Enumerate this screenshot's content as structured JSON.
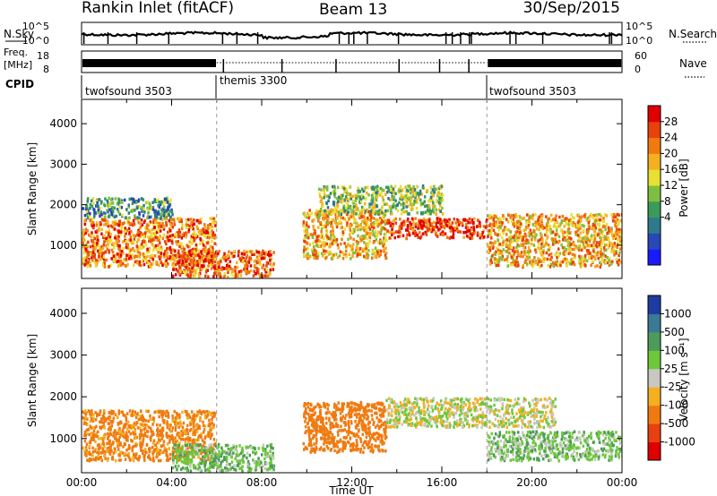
{
  "header": {
    "site": "Rankin Inlet (fitACF)",
    "beam": "Beam 13",
    "date": "30/Sep/2015"
  },
  "summary": {
    "nsky_label": "N.Sky",
    "nsearch_label": "N.Search",
    "freq_label_1": "Freq.",
    "freq_label_2": "[MHz]",
    "nave_label": "Nave",
    "cpid_label": "CPID",
    "noise_left_ticks": [
      "10^5",
      "10^0"
    ],
    "noise_right_ticks": [
      "10^5",
      "10^0"
    ],
    "freq_ticks": [
      "18",
      "8"
    ],
    "nave_ticks": [
      "60",
      "0"
    ],
    "cpid_segments": [
      {
        "label": "twofsound 3503",
        "start_hour": 0
      },
      {
        "label": "themis 3300",
        "start_hour": 6
      },
      {
        "label": "twofsound 3503",
        "start_hour": 18
      }
    ]
  },
  "chart_data": [
    {
      "type": "heatmap",
      "parameter": "power",
      "ylabel": "Slant Range [km]",
      "xlim_hours": [
        0,
        24
      ],
      "ylim": [
        180,
        4600
      ],
      "yticks": [
        1000,
        2000,
        3000,
        4000
      ],
      "colorbar": {
        "label": "Power [dB]",
        "ticks": [
          "28",
          "24",
          "20",
          "16",
          "12",
          "8",
          "4"
        ],
        "range": [
          0,
          30
        ],
        "colors": [
          "#1a1aff",
          "#2847b8",
          "#2e7a8c",
          "#3a9a5a",
          "#7fbf3f",
          "#e8e032",
          "#f4b020",
          "#f07a10",
          "#e8420c",
          "#e00000"
        ]
      },
      "echo_regions": [
        {
          "t_start": 0.0,
          "t_end": 5.9,
          "range_low": 500,
          "range_high": 1700,
          "power_db": 22
        },
        {
          "t_start": 0.0,
          "t_end": 4.0,
          "range_low": 1700,
          "range_high": 2200,
          "power_db": 10
        },
        {
          "t_start": 4.0,
          "t_end": 8.5,
          "range_low": 250,
          "range_high": 900,
          "power_db": 24
        },
        {
          "t_start": 9.8,
          "t_end": 13.5,
          "range_low": 700,
          "range_high": 1900,
          "power_db": 20
        },
        {
          "t_start": 13.5,
          "t_end": 18.0,
          "range_low": 1200,
          "range_high": 1700,
          "power_db": 26
        },
        {
          "t_start": 10.5,
          "t_end": 16.0,
          "range_low": 1800,
          "range_high": 2500,
          "power_db": 14
        },
        {
          "t_start": 18.0,
          "t_end": 24.0,
          "range_low": 500,
          "range_high": 1800,
          "power_db": 20
        }
      ]
    },
    {
      "type": "heatmap",
      "parameter": "velocity",
      "ylabel": "Slant Range [km]",
      "xlabel": "Time UT",
      "xlim_hours": [
        0,
        24
      ],
      "ylim": [
        180,
        4600
      ],
      "yticks": [
        1000,
        2000,
        3000,
        4000
      ],
      "xticks": [
        "00:00",
        "04:00",
        "08:00",
        "12:00",
        "16:00",
        "20:00",
        "00:00"
      ],
      "colorbar": {
        "label": "Velocity [m s⁻¹]",
        "ticks": [
          "1000",
          "500",
          "100",
          "25",
          "-25",
          "-100",
          "-500",
          "-1000"
        ],
        "colors": [
          "#1e3ca0",
          "#3a7a96",
          "#4e9a5a",
          "#6ec83c",
          "#c8c8c0",
          "#f4b020",
          "#f07a10",
          "#e84010",
          "#e00000"
        ]
      },
      "echo_regions": [
        {
          "t_start": 0.0,
          "t_end": 5.9,
          "range_low": 500,
          "range_high": 1700,
          "velocity": -150
        },
        {
          "t_start": 4.0,
          "t_end": 8.5,
          "range_low": 250,
          "range_high": 900,
          "velocity": 80
        },
        {
          "t_start": 9.8,
          "t_end": 13.5,
          "range_low": 700,
          "range_high": 1900,
          "velocity": -300
        },
        {
          "t_start": 13.5,
          "t_end": 21.0,
          "range_low": 1300,
          "range_high": 2000,
          "velocity": 0
        },
        {
          "t_start": 18.0,
          "t_end": 24.0,
          "range_low": 500,
          "range_high": 1200,
          "velocity": 60
        }
      ]
    }
  ]
}
